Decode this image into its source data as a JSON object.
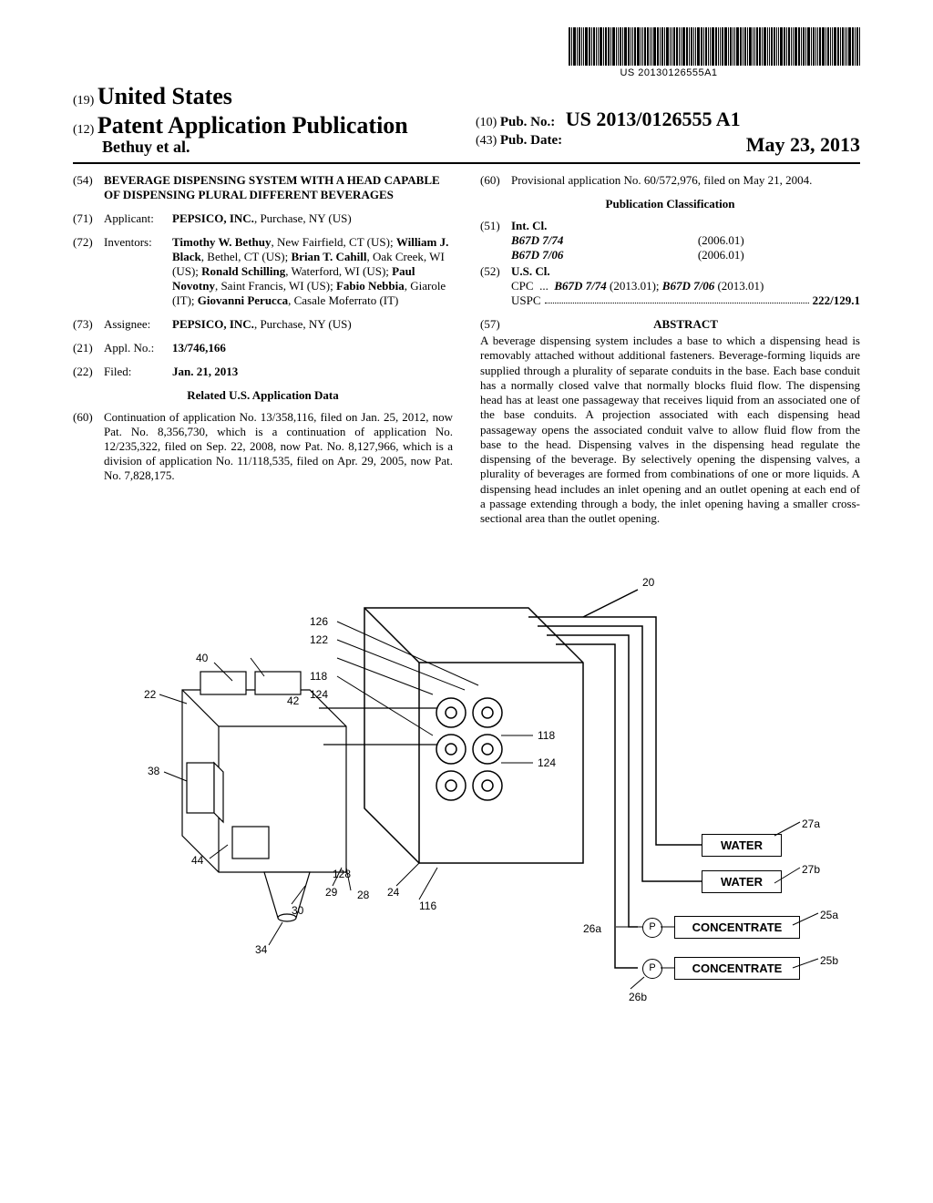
{
  "barcode": {
    "text": "US 20130126555A1"
  },
  "header": {
    "code19": "(19)",
    "country": "United States",
    "code12": "(12)",
    "pub_type": "Patent Application Publication",
    "authors_line": "Bethuy et al.",
    "code10": "(10)",
    "pub_no_label": "Pub. No.:",
    "pub_no": "US 2013/0126555 A1",
    "code43": "(43)",
    "pub_date_label": "Pub. Date:",
    "pub_date": "May 23, 2013"
  },
  "left": {
    "f54": {
      "code": "(54)",
      "value": "BEVERAGE DISPENSING SYSTEM WITH A HEAD CAPABLE OF DISPENSING PLURAL DIFFERENT BEVERAGES"
    },
    "f71": {
      "code": "(71)",
      "label": "Applicant:",
      "value_bold": "PEPSICO, INC.",
      "value_rest": ", Purchase, NY (US)"
    },
    "f72": {
      "code": "(72)",
      "label": "Inventors:",
      "value": "Timothy W. Bethuy, New Fairfield, CT (US); William J. Black, Bethel, CT (US); Brian T. Cahill, Oak Creek, WI (US); Ronald Schilling, Waterford, WI (US); Paul Novotny, Saint Francis, WI (US); Fabio Nebbia, Giarole (IT); Giovanni Perucca, Casale Moferrato (IT)"
    },
    "f73": {
      "code": "(73)",
      "label": "Assignee:",
      "value_bold": "PEPSICO, INC.",
      "value_rest": ", Purchase, NY (US)"
    },
    "f21": {
      "code": "(21)",
      "label": "Appl. No.:",
      "value": "13/746,166"
    },
    "f22": {
      "code": "(22)",
      "label": "Filed:",
      "value": "Jan. 21, 2013"
    },
    "related_heading": "Related U.S. Application Data",
    "f60a": {
      "code": "(60)",
      "value": "Continuation of application No. 13/358,116, filed on Jan. 25, 2012, now Pat. No. 8,356,730, which is a continuation of application No. 12/235,322, filed on Sep. 22, 2008, now Pat. No. 8,127,966, which is a division of application No. 11/118,535, filed on Apr. 29, 2005, now Pat. No. 7,828,175."
    }
  },
  "right": {
    "f60b": {
      "code": "(60)",
      "value": "Provisional application No. 60/572,976, filed on May 21, 2004."
    },
    "class_heading": "Publication Classification",
    "f51": {
      "code": "(51)",
      "label": "Int. Cl.",
      "rows": [
        {
          "cls": "B67D 7/74",
          "ver": "(2006.01)"
        },
        {
          "cls": "B67D 7/06",
          "ver": "(2006.01)"
        }
      ]
    },
    "f52": {
      "code": "(52)",
      "label": "U.S. Cl.",
      "cpc_label": "CPC",
      "cpc": "B67D 7/74 (2013.01); B67D 7/06 (2013.01)",
      "uspc_label": "USPC",
      "uspc": "222/129.1"
    },
    "f57": {
      "code": "(57)",
      "heading": "ABSTRACT"
    },
    "abstract": "A beverage dispensing system includes a base to which a dispensing head is removably attached without additional fasteners. Beverage-forming liquids are supplied through a plurality of separate conduits in the base. Each base conduit has a normally closed valve that normally blocks fluid flow. The dispensing head has at least one passageway that receives liquid from an associated one of the base conduits. A projection associated with each dispensing head passageway opens the associated conduit valve to allow fluid flow from the base to the head. Dispensing valves in the dispensing head regulate the dispensing of the beverage. By selectively opening the dispensing valves, a plurality of beverages are formed from combinations of one or more liquids. A dispensing head includes an inlet opening and an outlet opening at each end of a passage extending through a body, the inlet opening having a smaller cross-sectional area than the outlet opening."
  },
  "figure": {
    "labels": {
      "water": "WATER",
      "concentrate": "CONCENTRATE",
      "p": "P"
    },
    "refs": [
      "20",
      "22",
      "40",
      "42",
      "38",
      "44",
      "34",
      "30",
      "29",
      "28",
      "24",
      "116",
      "128",
      "118",
      "124",
      "122",
      "126",
      "118",
      "124",
      "27a",
      "27b",
      "25a",
      "25b",
      "26a",
      "26b"
    ]
  }
}
